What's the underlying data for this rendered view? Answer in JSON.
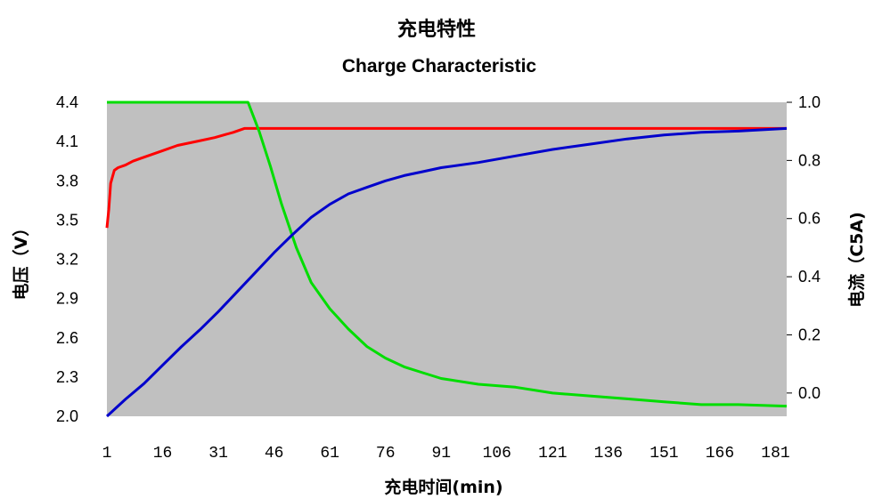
{
  "chart_data": {
    "type": "line",
    "title": "充电特性",
    "subtitle": "Charge Characteristic",
    "xlabel": "充电时间(min)",
    "ylabel_left": "电压（V）",
    "ylabel_right": "电流（C5A)",
    "x_ticks": [
      "1",
      "16",
      "31",
      "46",
      "61",
      "76",
      "91",
      "106",
      "121",
      "136",
      "151",
      "166",
      "181"
    ],
    "y_left_ticks": [
      "2.0",
      "2.3",
      "2.6",
      "2.9",
      "3.2",
      "3.5",
      "3.8",
      "4.1",
      "4.4"
    ],
    "y_right_ticks": [
      "0.0",
      "0.2",
      "0.4",
      "0.6",
      "0.8",
      "1.0"
    ],
    "xlim": [
      1,
      184
    ],
    "ylim_left": [
      2.0,
      4.4
    ],
    "ylim_right": [
      -0.08,
      1.0
    ],
    "plot_background": "#c0c0c0",
    "series": [
      {
        "color": "#ff0000",
        "axis": "left",
        "x": [
          1,
          1.5,
          2,
          3,
          4,
          6,
          8,
          10,
          13,
          16,
          20,
          25,
          30,
          35,
          38,
          40,
          60,
          100,
          140,
          184
        ],
        "y": [
          3.44,
          3.58,
          3.78,
          3.88,
          3.9,
          3.92,
          3.95,
          3.97,
          4.0,
          4.03,
          4.07,
          4.1,
          4.13,
          4.17,
          4.2,
          4.2,
          4.2,
          4.2,
          4.2,
          4.2
        ]
      },
      {
        "color": "#00dd00",
        "axis": "right",
        "x": [
          1,
          10,
          20,
          30,
          37,
          39,
          42,
          45,
          48,
          52,
          56,
          61,
          66,
          71,
          76,
          81,
          86,
          91,
          101,
          111,
          121,
          131,
          141,
          151,
          161,
          171,
          184
        ],
        "y": [
          1.0,
          1.0,
          1.0,
          1.0,
          1.0,
          1.0,
          0.9,
          0.78,
          0.65,
          0.5,
          0.38,
          0.29,
          0.22,
          0.16,
          0.12,
          0.09,
          0.07,
          0.05,
          0.03,
          0.02,
          0.0,
          -0.01,
          -0.02,
          -0.03,
          -0.04,
          -0.04,
          -0.045
        ]
      },
      {
        "color": "#0000cc",
        "axis": "left",
        "x": [
          1,
          6,
          11,
          16,
          21,
          26,
          31,
          36,
          41,
          46,
          51,
          56,
          61,
          66,
          71,
          76,
          81,
          86,
          91,
          101,
          111,
          121,
          131,
          141,
          151,
          161,
          171,
          184
        ],
        "y": [
          2.0,
          2.13,
          2.25,
          2.39,
          2.53,
          2.66,
          2.8,
          2.95,
          3.1,
          3.25,
          3.39,
          3.52,
          3.62,
          3.7,
          3.75,
          3.8,
          3.84,
          3.87,
          3.9,
          3.94,
          3.99,
          4.04,
          4.08,
          4.12,
          4.15,
          4.17,
          4.18,
          4.2
        ]
      }
    ]
  }
}
